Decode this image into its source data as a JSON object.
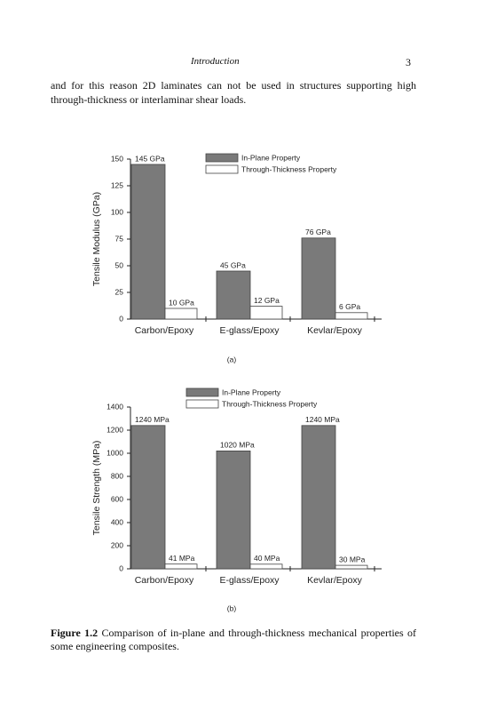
{
  "header": {
    "title": "Introduction",
    "page_number": "3"
  },
  "paragraph": "and for this reason 2D laminates can not be used in structures supporting high through-thickness or interlaminar shear loads.",
  "chart_data": [
    {
      "type": "bar",
      "label": "(a)",
      "ylabel": "Tensile Modulus (GPa)",
      "categories": [
        "Carbon/Epoxy",
        "E-glass/Epoxy",
        "Kevlar/Epoxy"
      ],
      "series": [
        {
          "name": "In-Plane Property",
          "color": "#7a7a7a",
          "values": [
            145,
            45,
            76
          ],
          "value_labels": [
            "145 GPa",
            "45 GPa",
            "76 GPa"
          ]
        },
        {
          "name": "Through-Thickness Property",
          "color": "#ffffff",
          "values": [
            10,
            12,
            6
          ],
          "value_labels": [
            "10 GPa",
            "12 GPa",
            "6 GPa"
          ]
        }
      ],
      "ylim": [
        0,
        150
      ],
      "yticks": [
        0,
        25,
        50,
        75,
        100,
        125,
        150
      ]
    },
    {
      "type": "bar",
      "label": "(b)",
      "ylabel": "Tensile Strength (MPa)",
      "categories": [
        "Carbon/Epoxy",
        "E-glass/Epoxy",
        "Kevlar/Epoxy"
      ],
      "series": [
        {
          "name": "In-Plane Property",
          "color": "#7a7a7a",
          "values": [
            1240,
            1020,
            1240
          ],
          "value_labels": [
            "1240 MPa",
            "1020 MPa",
            "1240 MPa"
          ]
        },
        {
          "name": "Through-Thickness Property",
          "color": "#ffffff",
          "values": [
            41,
            40,
            30
          ],
          "value_labels": [
            "41 MPa",
            "40 MPa",
            "30 MPa"
          ]
        }
      ],
      "ylim": [
        0,
        1400
      ],
      "yticks": [
        0,
        200,
        400,
        600,
        800,
        1000,
        1200,
        1400
      ]
    }
  ],
  "caption": {
    "label": "Figure 1.2",
    "text": "Comparison of in-plane and through-thickness mechanical properties of some engineering composites."
  }
}
